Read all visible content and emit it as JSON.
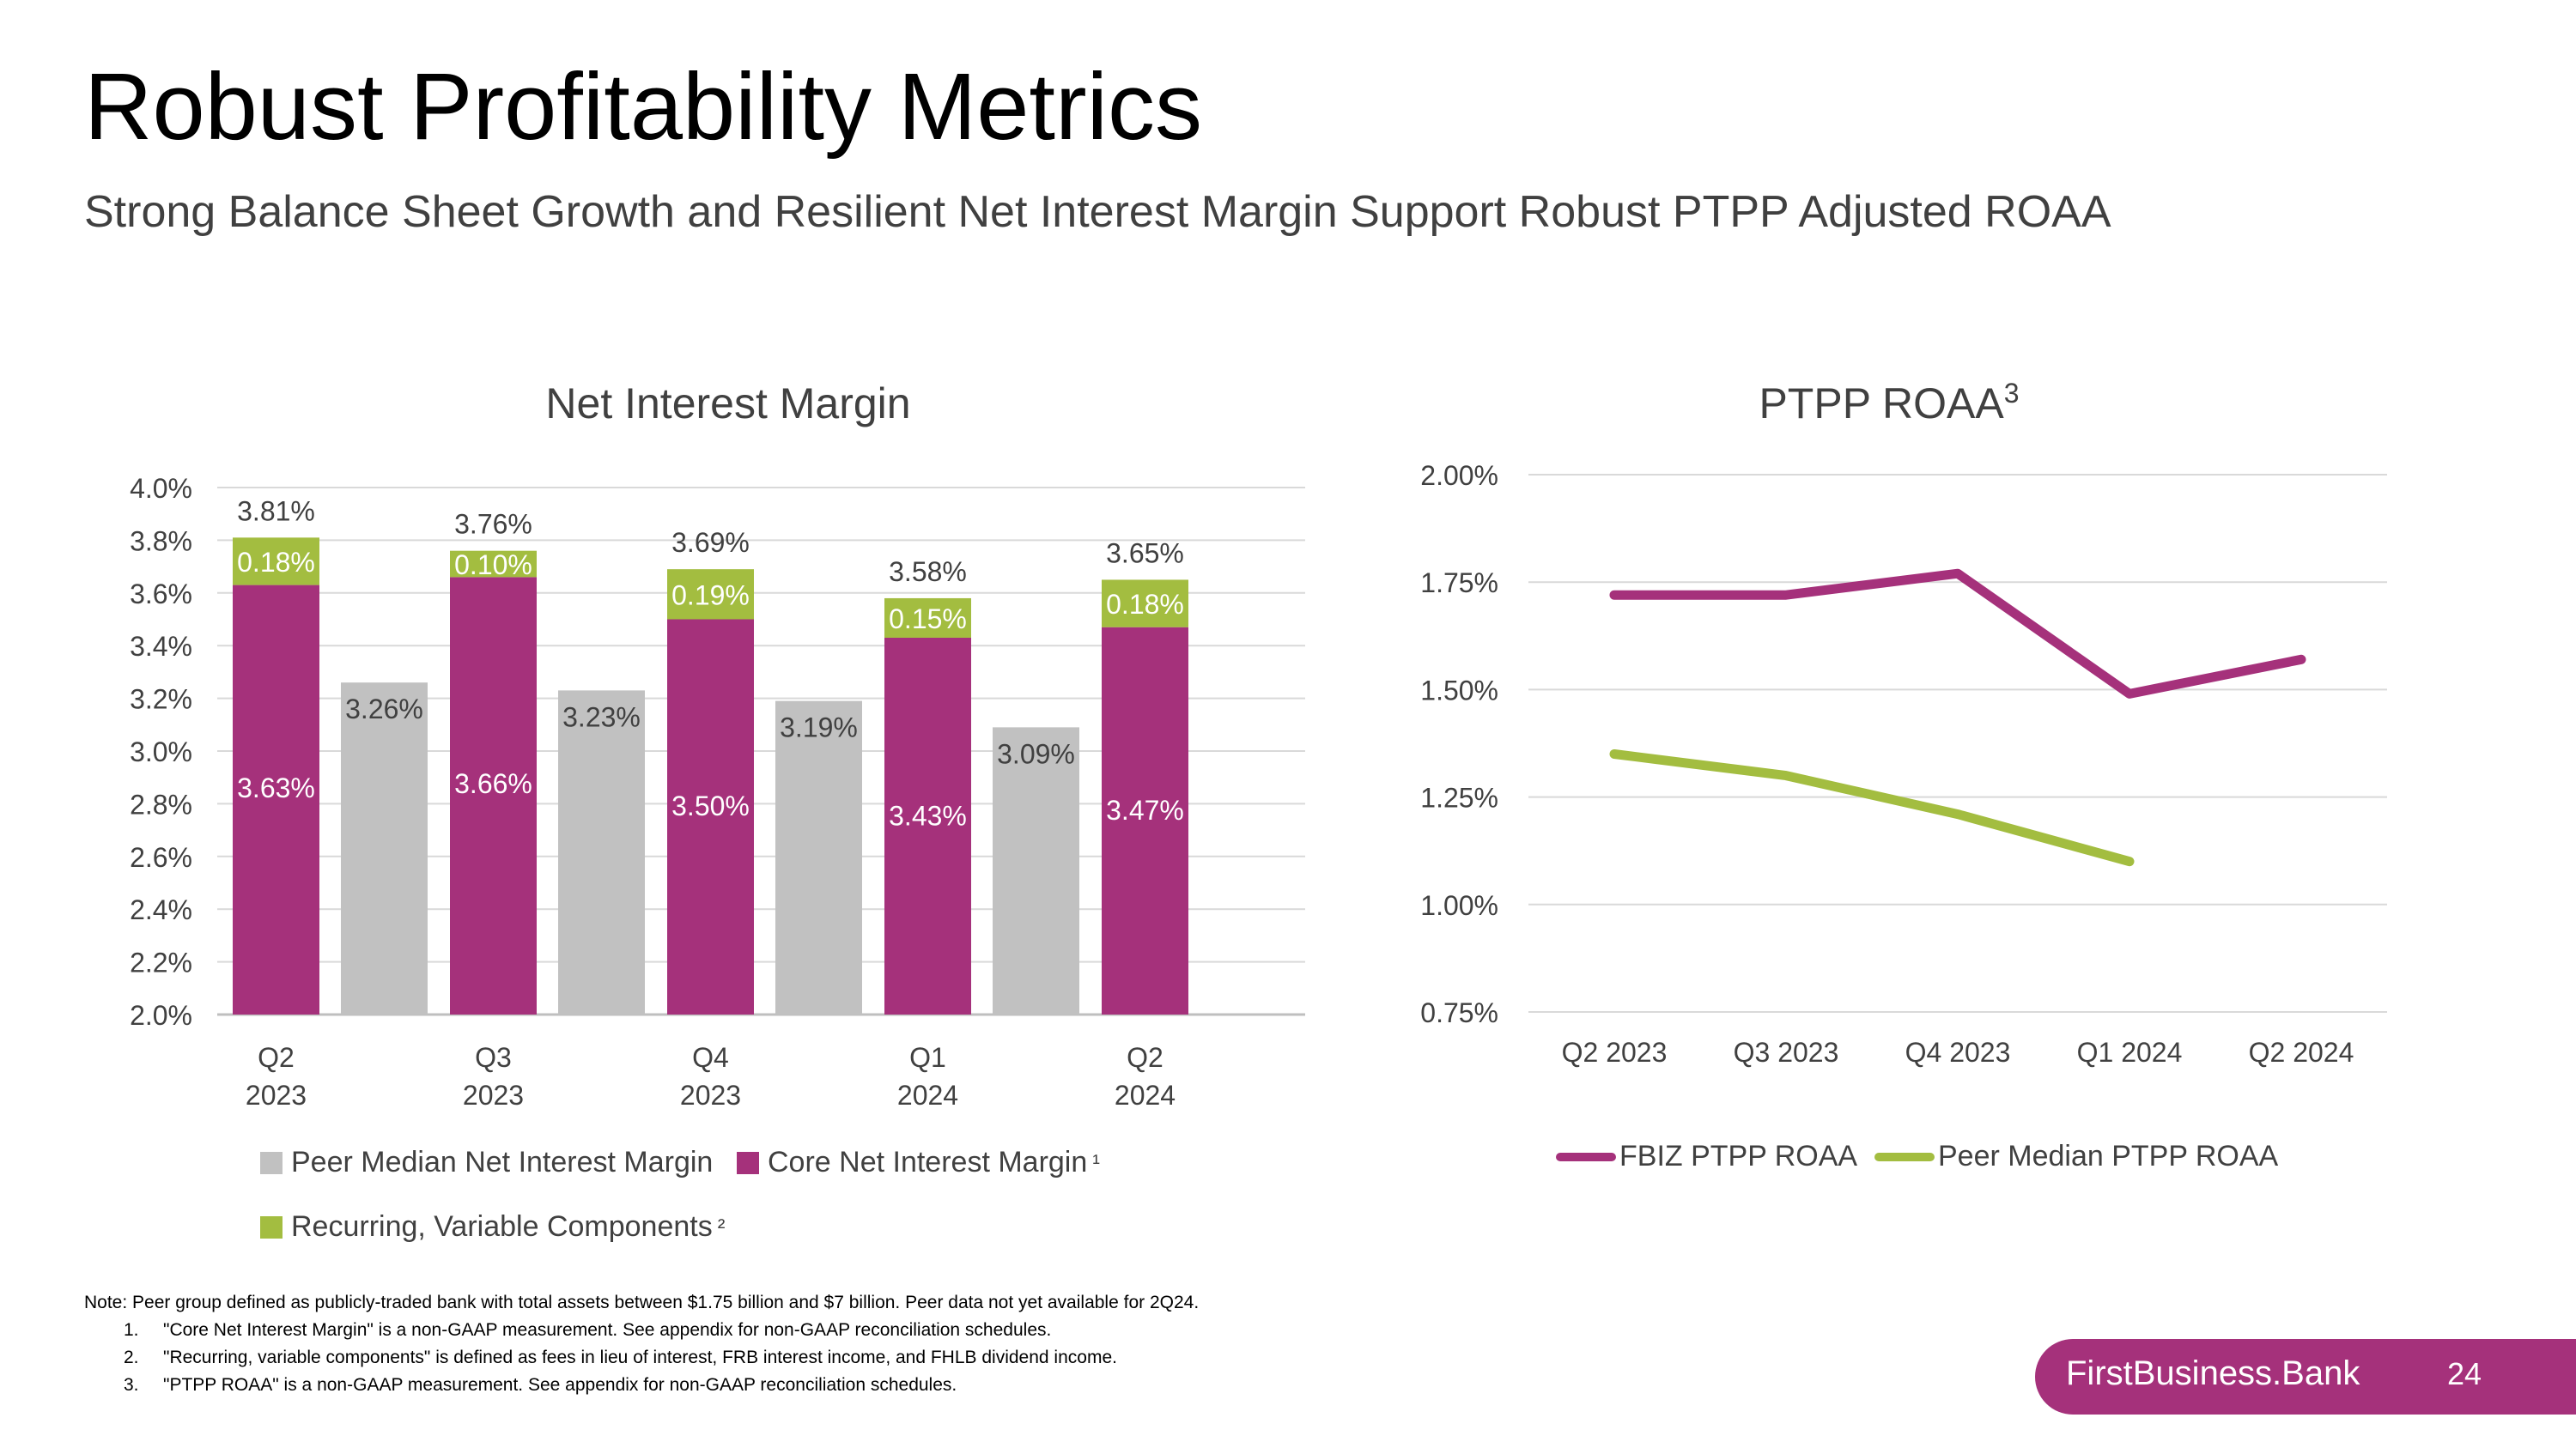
{
  "title": "Robust Profitability Metrics",
  "subtitle": "Strong Balance Sheet Growth and Resilient Net Interest Margin Support Robust PTPP Adjusted ROAA",
  "colors": {
    "magenta": "#a5317b",
    "green": "#a3bd40",
    "gray": "#c1c1c1",
    "text": "#404040",
    "grid": "#d9d9d9"
  },
  "chart_data": [
    {
      "type": "bar",
      "title": "Net Interest Margin",
      "categories": [
        "Q2 2023",
        "Q3 2023",
        "Q4 2023",
        "Q1 2024",
        "Q2 2024"
      ],
      "category_lines": [
        [
          "Q2",
          "2023"
        ],
        [
          "Q3",
          "2023"
        ],
        [
          "Q4",
          "2023"
        ],
        [
          "Q1",
          "2024"
        ],
        [
          "Q2",
          "2024"
        ]
      ],
      "ylim": [
        2.0,
        4.0
      ],
      "yticks": [
        "2.0%",
        "2.2%",
        "2.4%",
        "2.6%",
        "2.8%",
        "3.0%",
        "3.2%",
        "3.4%",
        "3.6%",
        "3.8%",
        "4.0%"
      ],
      "series": [
        {
          "name": "Core Net Interest Margin",
          "stack": "fbiz",
          "values": [
            3.63,
            3.66,
            3.5,
            3.43,
            3.47
          ],
          "labels": [
            "3.63%",
            "3.66%",
            "3.50%",
            "3.43%",
            "3.47%"
          ]
        },
        {
          "name": "Recurring, Variable Components",
          "stack": "fbiz",
          "values": [
            0.18,
            0.1,
            0.19,
            0.15,
            0.18
          ],
          "labels": [
            "0.18%",
            "0.10%",
            "0.19%",
            "0.15%",
            "0.18%"
          ]
        },
        {
          "name": "Peer Median Net Interest Margin",
          "stack": "peer",
          "values": [
            3.26,
            3.23,
            3.19,
            3.09,
            null
          ],
          "labels": [
            "3.26%",
            "3.23%",
            "3.19%",
            "3.09%",
            ""
          ]
        }
      ],
      "totals": [
        3.81,
        3.76,
        3.69,
        3.58,
        3.65
      ],
      "total_labels": [
        "3.81%",
        "3.76%",
        "3.69%",
        "3.58%",
        "3.65%"
      ],
      "legend": {
        "peer": "Peer Median Net Interest Margin",
        "core": "Core Net Interest Margin",
        "core_sup": "¹",
        "recurring": "Recurring, Variable Components",
        "recurring_sup": "²"
      }
    },
    {
      "type": "line",
      "title": "PTPP ROAA",
      "title_sup": "3",
      "categories": [
        "Q2 2023",
        "Q3 2023",
        "Q4 2023",
        "Q1 2024",
        "Q2 2024"
      ],
      "ylim": [
        0.75,
        2.0
      ],
      "yticks": [
        "0.75%",
        "1.00%",
        "1.25%",
        "1.50%",
        "1.75%",
        "2.00%"
      ],
      "series": [
        {
          "name": "FBIZ PTPP ROAA",
          "values": [
            1.72,
            1.72,
            1.77,
            1.49,
            1.57
          ]
        },
        {
          "name": "Peer Median PTPP ROAA",
          "values": [
            1.35,
            1.3,
            1.21,
            1.1,
            null
          ]
        }
      ]
    }
  ],
  "notes": {
    "intro": "Note: Peer group defined as publicly-traded bank with total assets between $1.75 billion and $7 billion. Peer data not yet available for 2Q24.",
    "items": [
      {
        "num": "1.",
        "text": "\"Core Net Interest Margin\" is a non-GAAP measurement. See appendix for non-GAAP reconciliation schedules."
      },
      {
        "num": "2.",
        "text": "\"Recurring, variable components\" is defined as fees in lieu of interest, FRB interest income, and FHLB dividend income."
      },
      {
        "num": "3.",
        "text": "\"PTPP ROAA\" is a non-GAAP measurement. See appendix for non-GAAP reconciliation schedules."
      }
    ]
  },
  "footer": {
    "brand": "FirstBusiness.Bank",
    "page": "24"
  }
}
